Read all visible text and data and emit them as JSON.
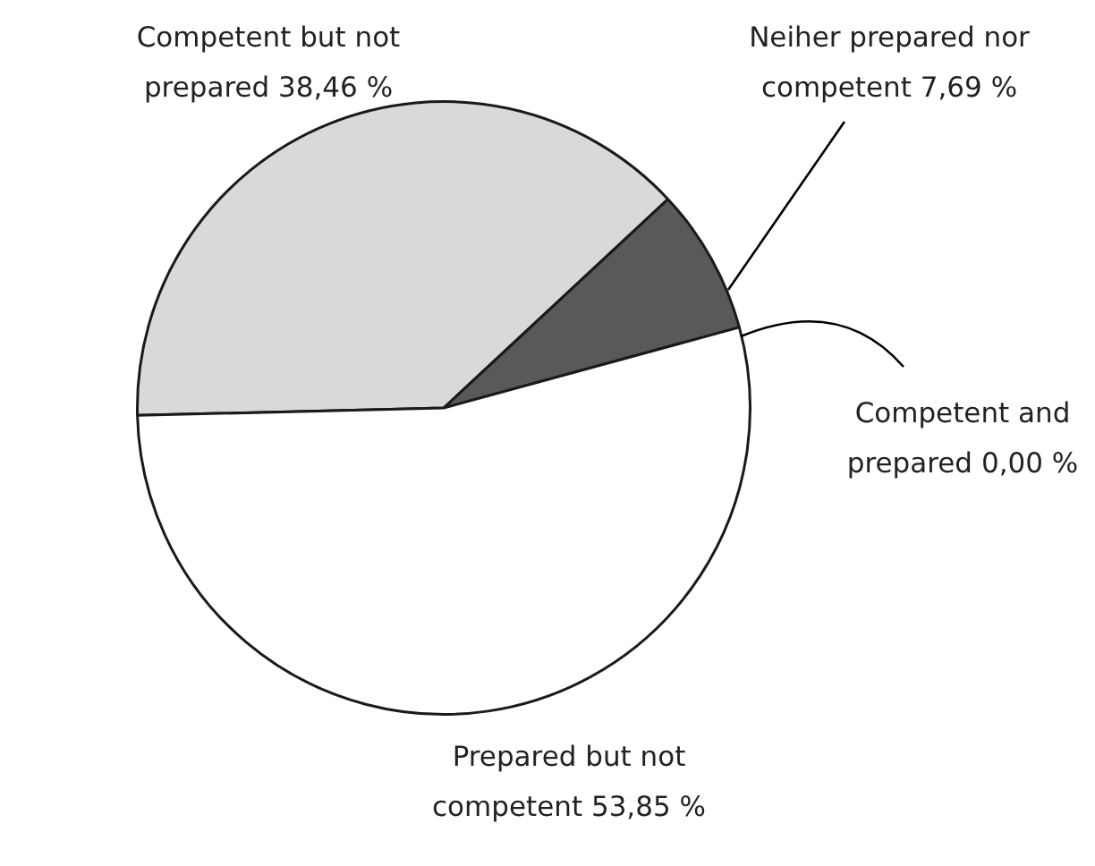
{
  "chart_data": {
    "type": "pie",
    "categories": [
      "Competent but not prepared",
      "Neiher prepared nor competent",
      "Competent and prepared",
      "Prepared but not competent"
    ],
    "values": [
      38.46,
      7.69,
      0.0,
      53.85
    ],
    "value_labels": [
      "38,46 %",
      "7,69 %",
      "0,00 %",
      "53,85 %"
    ],
    "colors": [
      "#d9d9d9",
      "#595959",
      "#1a1a1a",
      "#ffffff"
    ],
    "legend": false
  }
}
